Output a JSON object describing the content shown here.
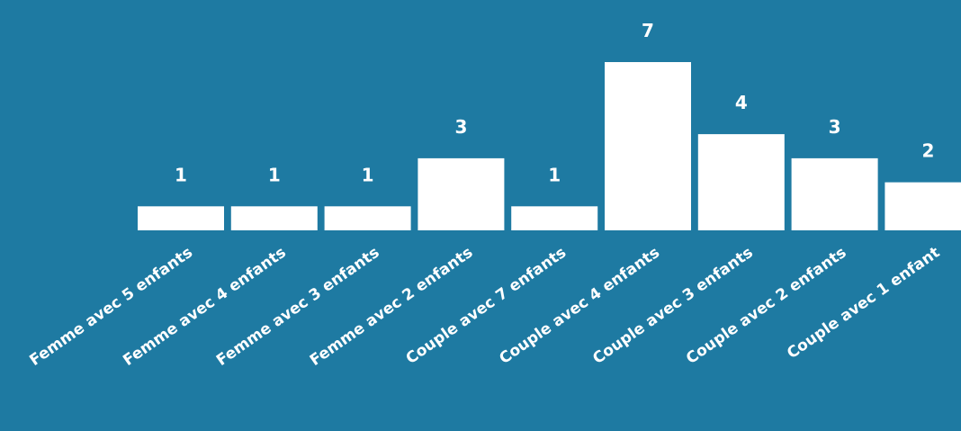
{
  "colors": {
    "background": "#1e7aa2",
    "bar": "#ffffff",
    "text": "#ffffff"
  },
  "chart_data": {
    "type": "bar",
    "categories": [
      "Femme avec 5 enfants",
      "Femme avec 4 enfants",
      "Femme avec 3 enfants",
      "Femme avec 2 enfants",
      "Couple avec 7 enfants",
      "Couple avec 4 enfants",
      "Couple avec 3 enfants",
      "Couple avec 2 enfants",
      "Couple avec 1 enfant"
    ],
    "values": [
      1,
      1,
      1,
      3,
      1,
      7,
      4,
      3,
      2
    ],
    "data_labels": [
      "1",
      "1",
      "1",
      "3",
      "1",
      "7",
      "4",
      "3",
      "2"
    ],
    "ylim": [
      0,
      7
    ],
    "grid": false,
    "legend": "none"
  }
}
